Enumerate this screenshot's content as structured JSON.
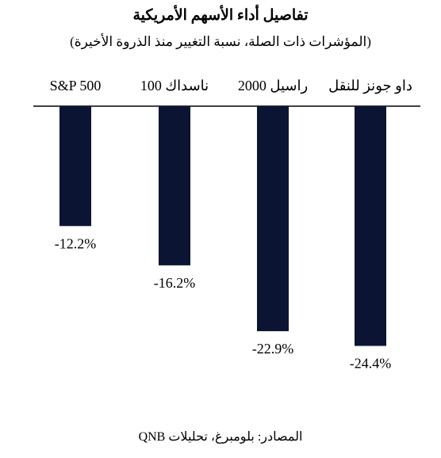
{
  "chart_data": {
    "type": "bar",
    "title": "تفاصيل أداء الأسهم الأمريكية",
    "subtitle": "(المؤشرات ذات الصلة، نسبة التغيير منذ الذروة الأخيرة)",
    "categories": [
      "S&P 500",
      "ناسداك 100",
      "راسيل 2000",
      "داو جونز للنقل"
    ],
    "values": [
      -12.2,
      -16.2,
      -22.9,
      -24.4
    ],
    "value_labels": [
      "-12.2%",
      "-16.2%",
      "-22.9%",
      "-24.4%"
    ],
    "ylim": [
      -30,
      0
    ],
    "grid": false,
    "legend": "none",
    "bar_color": "#0b1533",
    "axis_color": "#000000"
  },
  "footer": {
    "source": "المصادر: بلومبرغ، تحليلات QNB"
  }
}
